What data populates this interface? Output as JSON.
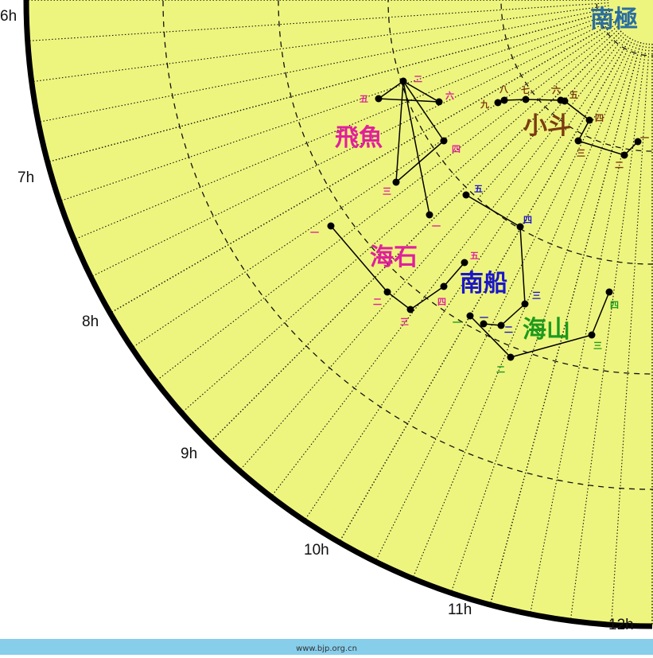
{
  "pole_label": "南極",
  "hour_labels": [
    "6h",
    "7h",
    "8h",
    "9h",
    "10h",
    "11h",
    "12h"
  ],
  "colors": {
    "background": "#eef57e",
    "border": "#000000",
    "footer": "#87ceeb",
    "pink": "#e0209c",
    "blue": "#1a16c8",
    "brown": "#7a3b10",
    "green": "#1c9a1c",
    "pole": "#2a6ea0"
  },
  "constellations": [
    {
      "name": "飛魚",
      "color": "pink",
      "stars": [
        {
          "label": "一"
        },
        {
          "label": "二"
        },
        {
          "label": "三"
        },
        {
          "label": "四"
        },
        {
          "label": "五"
        },
        {
          "label": "六"
        }
      ]
    },
    {
      "name": "海石",
      "color": "pink",
      "stars": [
        {
          "label": "一"
        },
        {
          "label": "二"
        },
        {
          "label": "三"
        },
        {
          "label": "四"
        },
        {
          "label": "五"
        }
      ]
    },
    {
      "name": "南船",
      "color": "blue",
      "stars": [
        {
          "label": "一"
        },
        {
          "label": "二"
        },
        {
          "label": "三"
        },
        {
          "label": "四"
        },
        {
          "label": "五"
        }
      ]
    },
    {
      "name": "海山",
      "color": "green",
      "stars": [
        {
          "label": "一"
        },
        {
          "label": "二"
        },
        {
          "label": "三"
        },
        {
          "label": "四"
        }
      ]
    },
    {
      "name": "小斗",
      "color": "brown",
      "stars": [
        {
          "label": "一"
        },
        {
          "label": "二"
        },
        {
          "label": "三"
        },
        {
          "label": "四"
        },
        {
          "label": "五"
        },
        {
          "label": "六"
        },
        {
          "label": "七"
        },
        {
          "label": "八"
        },
        {
          "label": "九"
        }
      ]
    }
  ],
  "footer_text": "www.bjp.org.cn"
}
